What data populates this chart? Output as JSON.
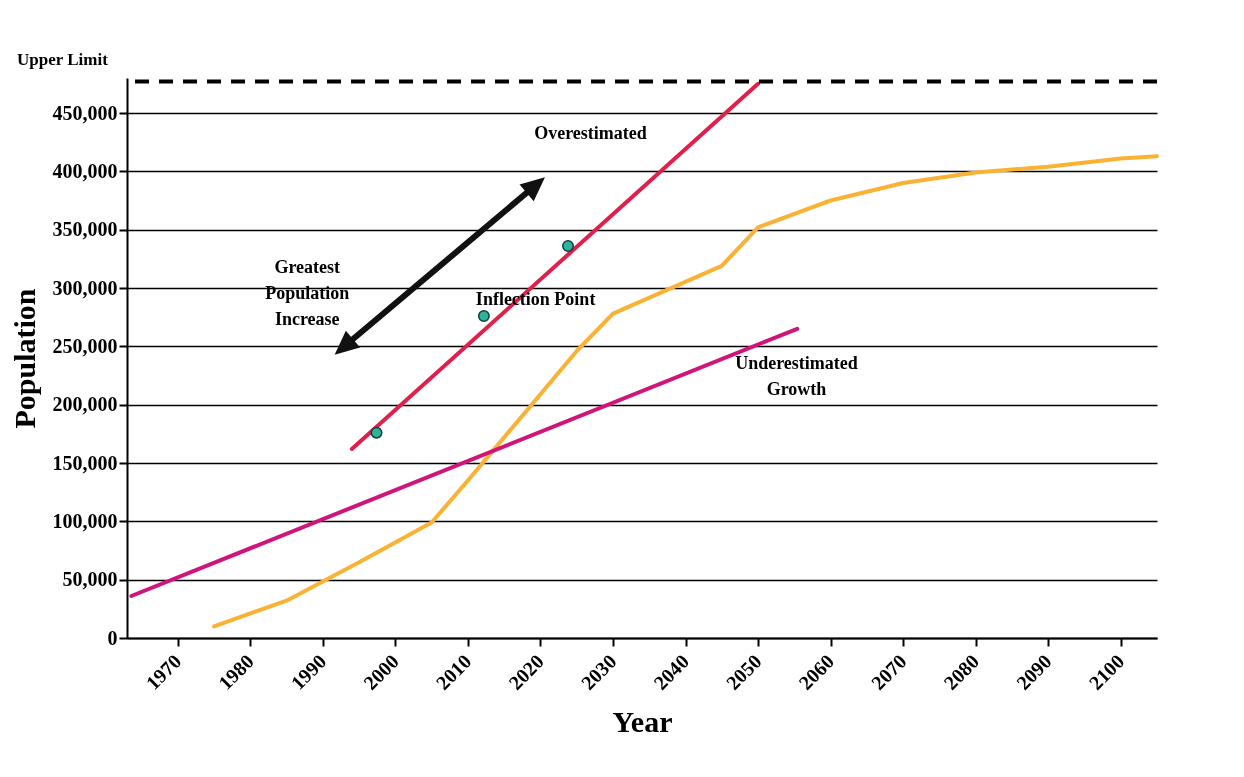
{
  "chart_data": {
    "type": "line",
    "xlabel": "Year",
    "ylabel": "Population",
    "xlim": [
      1963,
      2105
    ],
    "xticks": [
      1970,
      1980,
      1990,
      2000,
      2010,
      2020,
      2030,
      2040,
      2050,
      2060,
      2070,
      2080,
      2090,
      2100
    ],
    "ylim": [
      0,
      480000
    ],
    "yticks": [
      0,
      {
        "value": 50000,
        "label": "50,000"
      },
      {
        "value": 100000,
        "label": "100,000"
      },
      {
        "value": 150000,
        "label": "150,000"
      },
      {
        "value": 200000,
        "label": "200,000"
      },
      {
        "value": 250000,
        "label": "250,000"
      },
      {
        "value": 300000,
        "label": "300,000"
      },
      {
        "value": 350000,
        "label": "350,000"
      },
      {
        "value": 400000,
        "label": "400,000"
      },
      {
        "value": 450000,
        "label": "450,000"
      }
    ],
    "grid": "y",
    "series": [
      {
        "color": "#f9b233",
        "x": [
          1975,
          1985,
          1995,
          2005,
          2010,
          2020,
          2025,
          2030,
          2045,
          2050,
          2060,
          2070,
          2080,
          2090,
          2100,
          2105
        ],
        "values": [
          10000,
          32000,
          65000,
          99000,
          135000,
          209000,
          246000,
          278000,
          319000,
          352000,
          375000,
          390000,
          399000,
          404000,
          411000,
          413000
        ]
      },
      {
        "color": "#e0204a",
        "x": [
          1994,
          2050
        ],
        "values": [
          162000,
          475000
        ]
      },
      {
        "color": "#d0157a",
        "x": [
          1963.6,
          2055.4
        ],
        "values": [
          36000,
          265000
        ]
      },
      {
        "type": "scatter",
        "color": "#2bb59a",
        "x": [
          1997.4,
          2012.2,
          2023.8
        ],
        "values": [
          176000,
          276000,
          336000
        ]
      }
    ],
    "ref_lines": [
      {
        "axis": "y",
        "value": 477000,
        "label": "Upper Limit",
        "color": "#000000",
        "line_style": "dashed"
      }
    ],
    "annotations": [
      "Overestimated",
      "Greatest\nPopulation\nIncrease",
      {
        "text": "Inflection Point",
        "x": 2012.2,
        "y": 276000
      },
      "Underestimated\nGrowth"
    ]
  }
}
